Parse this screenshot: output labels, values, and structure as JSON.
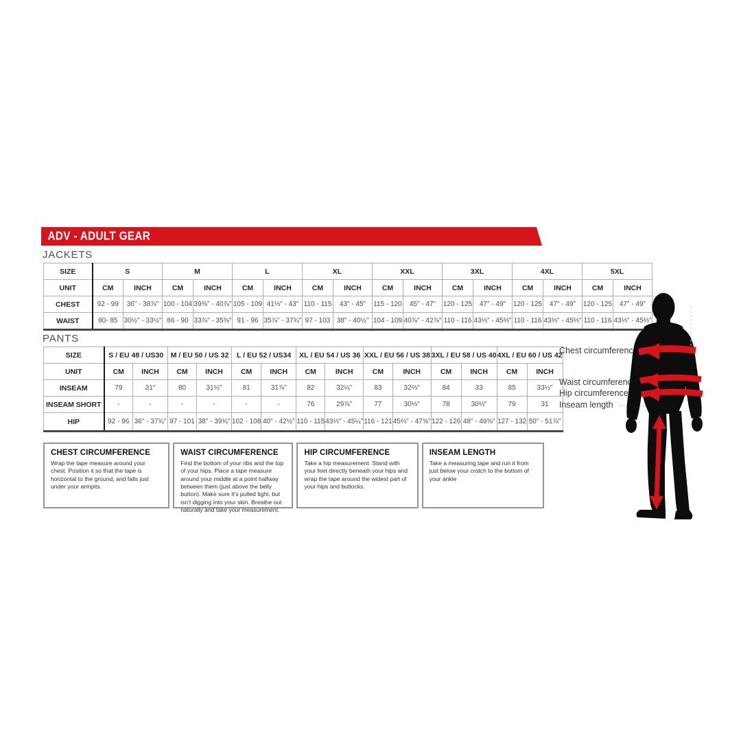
{
  "banner": {
    "title": "ADV - ADULT GEAR",
    "color": "#d6141c"
  },
  "jackets": {
    "label": "JACKETS",
    "size_header": "SIZE",
    "unit_header": "UNIT",
    "cm_label": "CM",
    "inch_label": "INCH",
    "sizes": [
      "S",
      "M",
      "L",
      "XL",
      "XXL",
      "3XL",
      "4XL",
      "5XL"
    ],
    "rows": [
      {
        "label": "CHEST",
        "cells": [
          [
            "92 - 99",
            "36\" - 38⅞\""
          ],
          [
            "100 - 104",
            "39⅜\" - 40⅞\""
          ],
          [
            "105 - 109",
            "41⅓\" - 43\""
          ],
          [
            "110 - 115",
            "43\" - 45\""
          ],
          [
            "115 - 120",
            "45\" - 47\""
          ],
          [
            "120 - 125",
            "47\" - 49\""
          ],
          [
            "120 - 125",
            "47\" - 49\""
          ],
          [
            "120 - 125",
            "47\" - 49\""
          ]
        ]
      },
      {
        "label": "WAIST",
        "cells": [
          [
            "80- 85",
            "30½\" - 33½\""
          ],
          [
            "86 - 90",
            "33⅞\" - 35⅜\""
          ],
          [
            "91 - 96",
            "35⅞\" - 37¾\""
          ],
          [
            "97 - 103",
            "38\" - 40½\""
          ],
          [
            "104 - 109",
            "40⅞\" - 42⅞\""
          ],
          [
            "110 - 116",
            "43⅓\" - 45⅔\""
          ],
          [
            "110 - 116",
            "43⅓\" - 45⅔\""
          ],
          [
            "110 - 116",
            "43⅓\" - 45⅔\""
          ]
        ]
      }
    ]
  },
  "pants": {
    "label": "PANTS",
    "size_header": "SIZE",
    "unit_header": "UNIT",
    "cm_label": "CM",
    "inch_label": "INCH",
    "sizes": [
      "S / EU 48 / US30",
      "M / EU 50 / US 32",
      "L / EU 52 / US34",
      "XL / EU 54 / US 36",
      "XXL / EU 56 / US 38",
      "3XL / EU 58 / US 40",
      "4XL / EU 60 / US 42"
    ],
    "rows": [
      {
        "label": "INSEAM",
        "cells": [
          [
            "79",
            "31\""
          ],
          [
            "80",
            "31½\""
          ],
          [
            "81",
            "31⅞\""
          ],
          [
            "82",
            "32¼\""
          ],
          [
            "83",
            "32⅔\""
          ],
          [
            "84",
            "33"
          ],
          [
            "85",
            "33½\""
          ]
        ]
      },
      {
        "label": "INSEAM SHORT",
        "cells": [
          [
            "-",
            "-"
          ],
          [
            "-",
            "-"
          ],
          [
            "-",
            "-"
          ],
          [
            "76",
            "29⅞\""
          ],
          [
            "77",
            "30⅓\""
          ],
          [
            "78",
            "30⅔\""
          ],
          [
            "79",
            "31"
          ]
        ]
      },
      {
        "label": "HIP",
        "cells": [
          [
            "92 - 96",
            "36\" - 37¾\""
          ],
          [
            "97 - 101",
            "38\" - 39¾\""
          ],
          [
            "102 - 108",
            "40\" - 42½\""
          ],
          [
            "110 - 115",
            "43⅓\" - 45¼\""
          ],
          [
            "116 - 121",
            "45⅔\" - 47⅝\""
          ],
          [
            "122 - 126",
            "48\" - 49⅝\""
          ],
          [
            "127 - 132",
            "50\" - 51⅞\""
          ]
        ]
      }
    ]
  },
  "info_boxes": [
    {
      "title": "CHEST CIRCUMFERENCE",
      "body": "Wrap the tape measure around your chest. Position it so that the tape is horizontal to the ground, and falls just under your armpits."
    },
    {
      "title": "WAIST CIRCUMFERENCE",
      "body": "Find the bottom of your ribs and the top of your hips. Place a tape measure around your middle at a point halfway between them (just above the belly button). Make sure it's pulled tight, but isn't digging into your skin. Breathe out naturally and take your measurement."
    },
    {
      "title": "HIP CIRCUMFERENCE",
      "body": "Take a hip measurement. Stand with your feet directly beneath your hips and wrap the tape around the widest part of your hips and buttocks."
    },
    {
      "title": "INSEAM LENGTH",
      "body": "Take a measuring tape and run it from just below your crotch to the bottom of your ankle"
    }
  ],
  "figure": {
    "labels": [
      "Chest circumference",
      "Waist circumference",
      "Hip circumference",
      "Inseam length"
    ],
    "silhouette_color": "#0d0d0d",
    "arrow_color": "#d6141c"
  }
}
